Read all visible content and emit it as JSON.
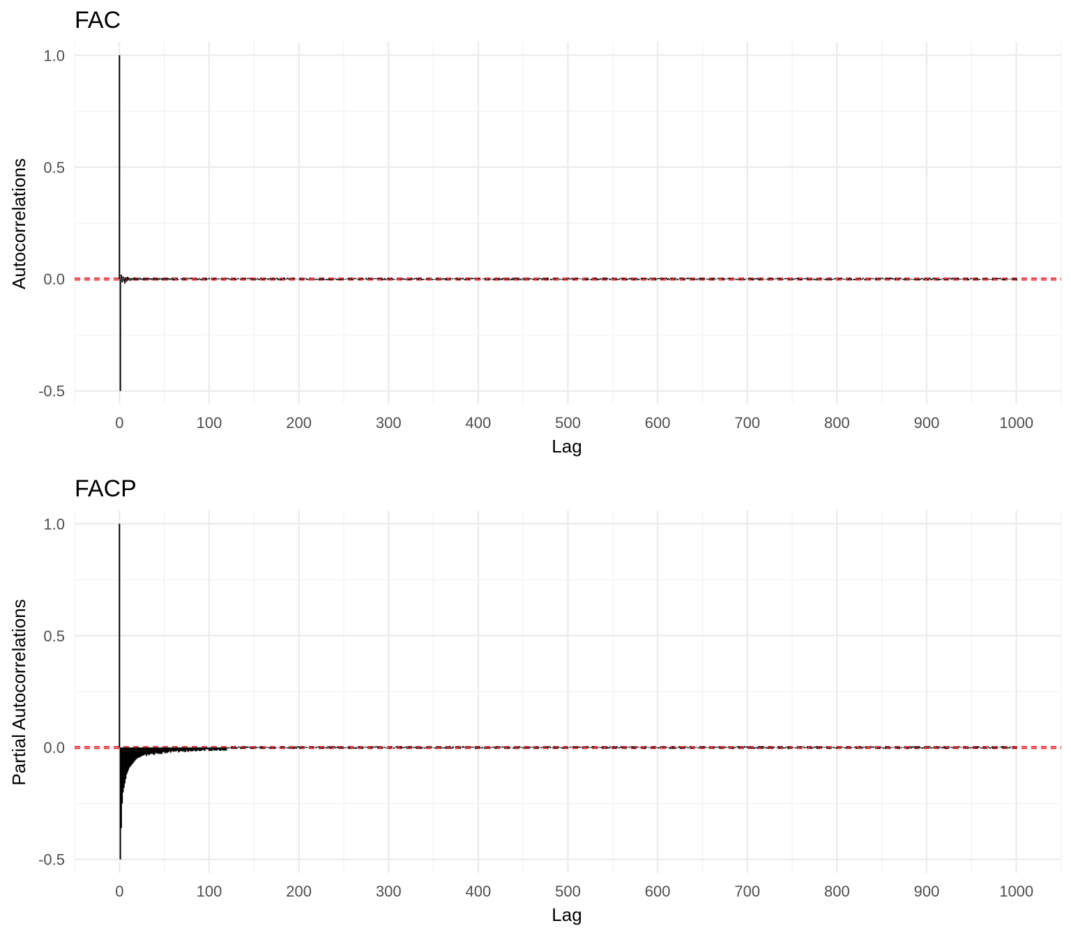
{
  "chart_data": [
    {
      "type": "bar",
      "title": "FAC",
      "xlabel": "Lag",
      "ylabel": "Autocorrelations",
      "xlim": [
        -50,
        1050
      ],
      "ylim": [
        -0.56,
        1.06
      ],
      "x_ticks": [
        0,
        100,
        200,
        300,
        400,
        500,
        600,
        700,
        800,
        900,
        1000
      ],
      "x_tick_labels": [
        "0",
        "100",
        "200",
        "300",
        "400",
        "500",
        "600",
        "700",
        "800",
        "900",
        "1000"
      ],
      "y_ticks": [
        -0.5,
        0.0,
        0.5,
        1.0
      ],
      "y_tick_labels": [
        "-0.5",
        "0.0",
        "0.5",
        "1.0"
      ],
      "grid": true,
      "legend": "none",
      "confidence_band": [
        -0.004,
        0.004
      ],
      "confidence_color": "#e8202a",
      "bar_color": "#000000",
      "series": [
        {
          "lag_start": 0,
          "lag_step": 1,
          "note_lags": "lags 0..1000",
          "values": [
            1.0,
            -0.5,
            0.02,
            -0.015,
            0.012,
            -0.01,
            -0.02,
            0.008,
            -0.012,
            0.01,
            -0.005,
            0.006,
            -0.008,
            0.004,
            -0.006,
            0.005,
            -0.004,
            0.007,
            -0.006,
            0.003,
            -0.005,
            0.004,
            -0.003,
            0.006,
            -0.004,
            0.003,
            -0.005,
            0.004,
            -0.006,
            0.005,
            -0.003,
            0.004,
            -0.004,
            0.005,
            -0.003,
            0.004,
            -0.005,
            0.003,
            -0.004,
            0.006,
            -0.003,
            0.004,
            -0.005,
            0.003,
            -0.004,
            0.005,
            -0.003,
            0.004,
            -0.006,
            0.005,
            -0.003,
            0.004,
            -0.004,
            0.005,
            -0.003,
            0.004,
            -0.005,
            0.003,
            -0.004,
            0.006
          ],
          "tail_amplitude": 0.006
        }
      ]
    },
    {
      "type": "bar",
      "title": "FACP",
      "xlabel": "Lag",
      "ylabel": "Partial Autocorrelations",
      "xlim": [
        -50,
        1050
      ],
      "ylim": [
        -0.56,
        1.06
      ],
      "x_ticks": [
        0,
        100,
        200,
        300,
        400,
        500,
        600,
        700,
        800,
        900,
        1000
      ],
      "x_tick_labels": [
        "0",
        "100",
        "200",
        "300",
        "400",
        "500",
        "600",
        "700",
        "800",
        "900",
        "1000"
      ],
      "y_ticks": [
        -0.5,
        0.0,
        0.5,
        1.0
      ],
      "y_tick_labels": [
        "-0.5",
        "0.0",
        "0.5",
        "1.0"
      ],
      "grid": true,
      "legend": "none",
      "confidence_band": [
        -0.004,
        0.004
      ],
      "confidence_color": "#e8202a",
      "bar_color": "#000000",
      "series": [
        {
          "lag_start": 0,
          "lag_step": 1,
          "values": [
            1.0,
            -0.5,
            -0.36,
            -0.25,
            -0.2,
            -0.18,
            -0.16,
            -0.14,
            -0.12,
            -0.11,
            -0.1,
            -0.09,
            -0.085,
            -0.08,
            -0.075,
            -0.07,
            -0.065,
            -0.06,
            -0.055,
            -0.05,
            -0.048,
            -0.046,
            -0.044,
            -0.042,
            -0.04,
            -0.038,
            -0.036,
            -0.034,
            -0.032,
            -0.03
          ],
          "decay_until_lag": 120,
          "tail_amplitude": 0.006
        }
      ]
    }
  ]
}
